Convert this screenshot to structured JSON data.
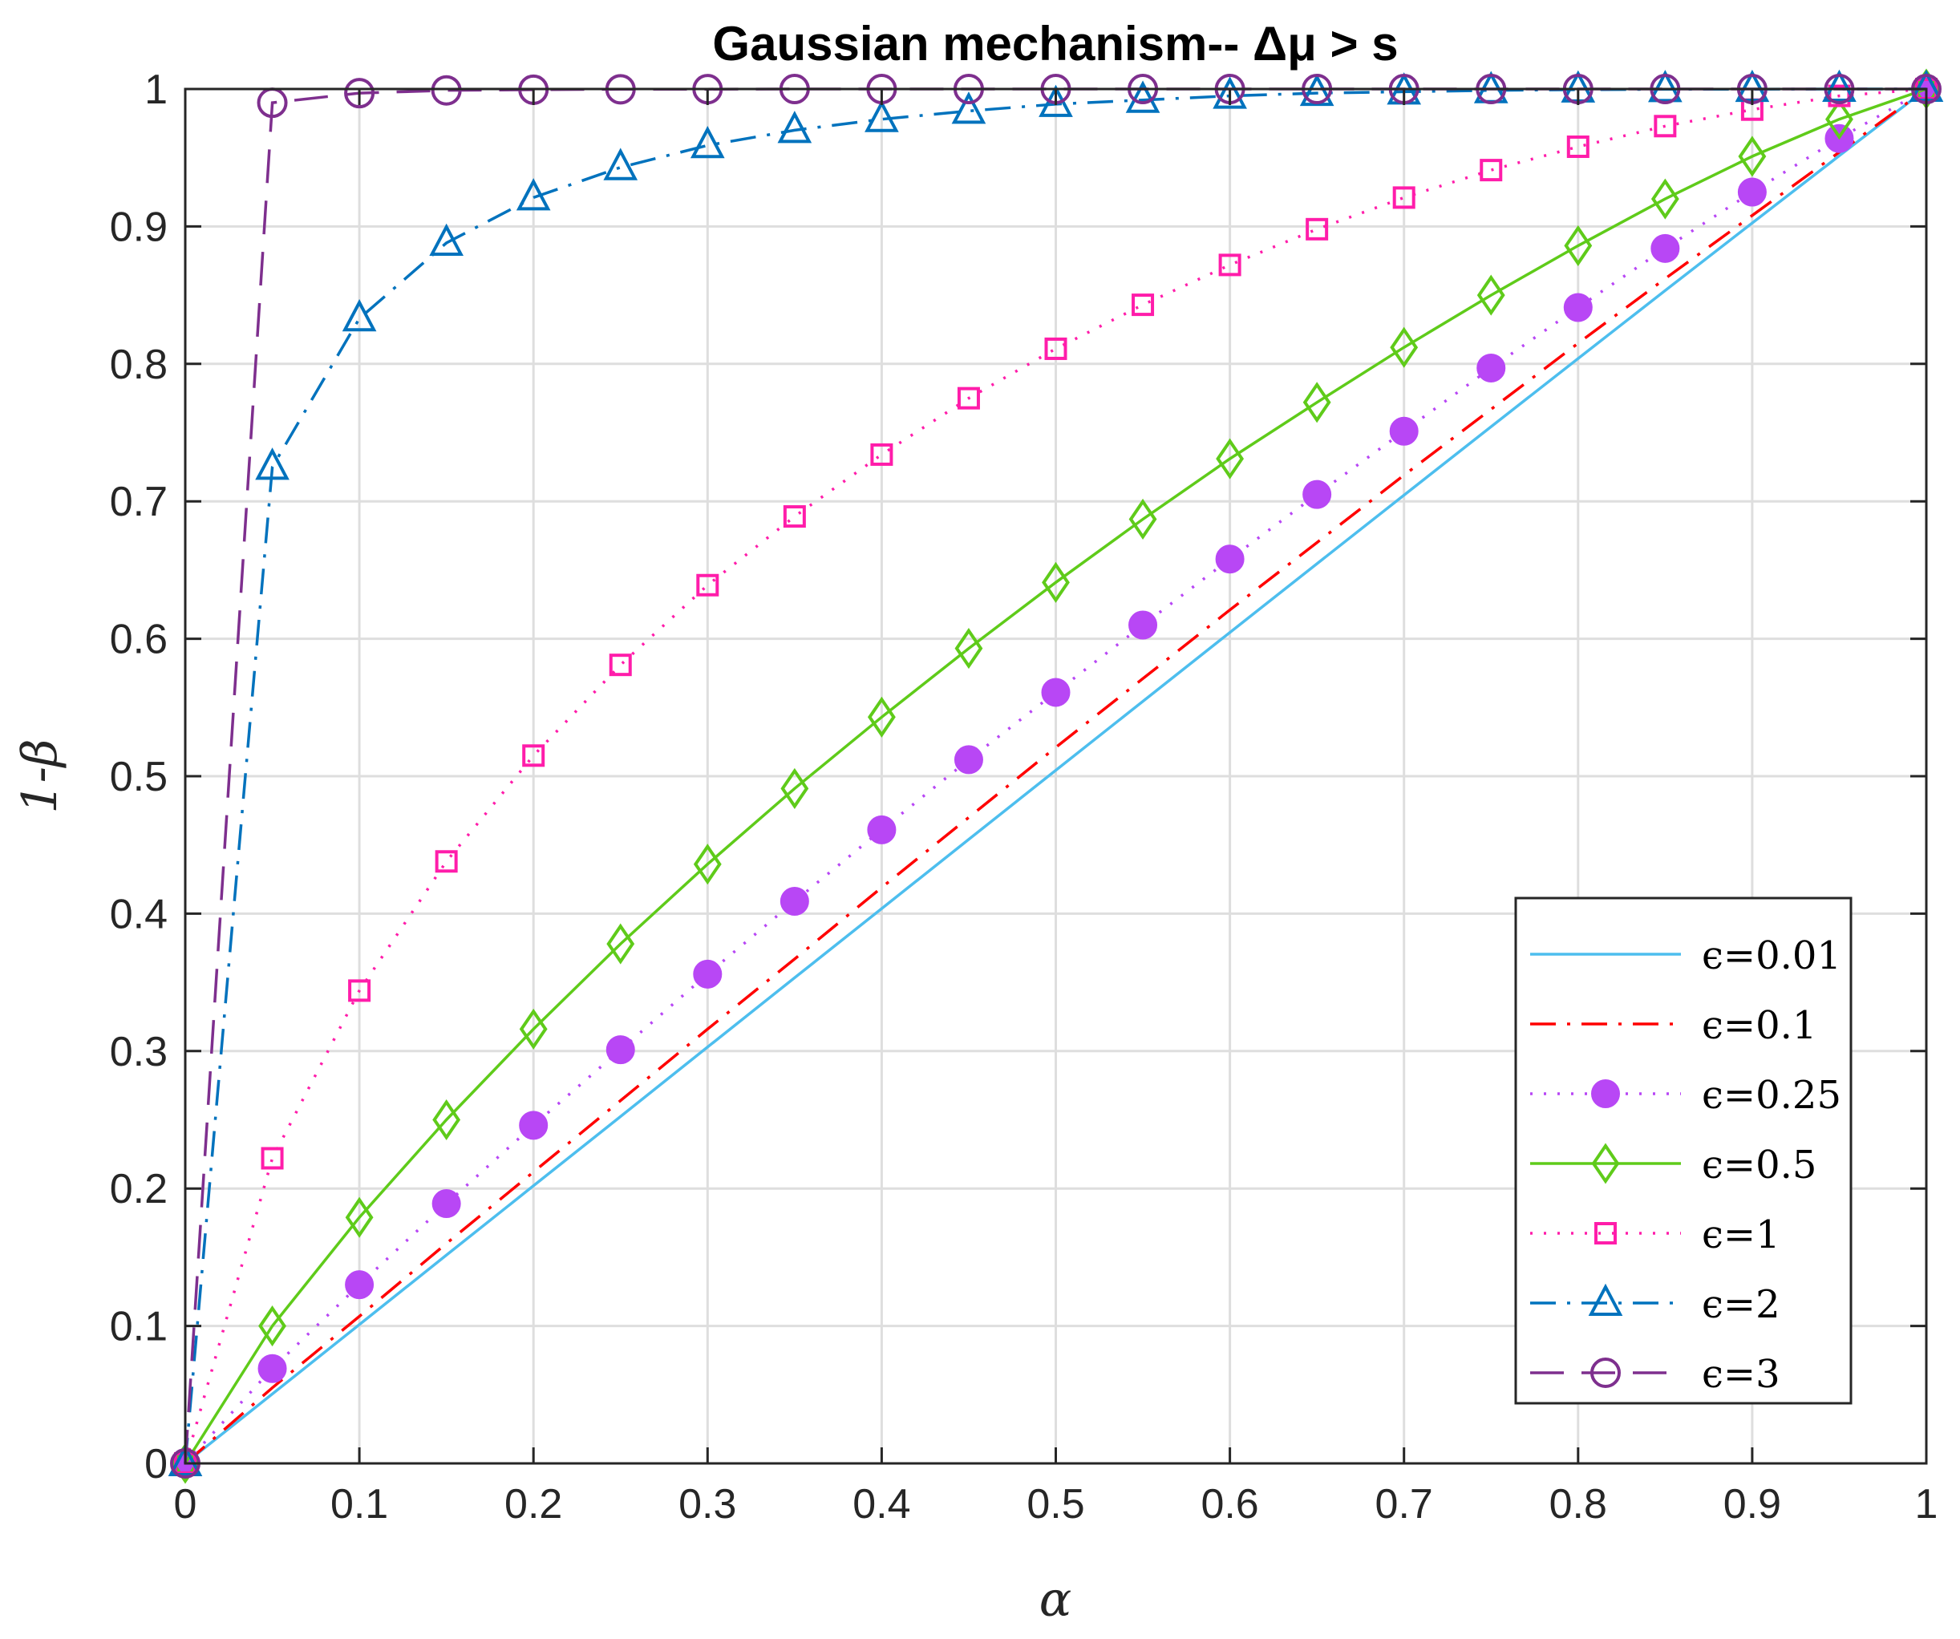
{
  "chart_data": {
    "type": "line",
    "title": "Gaussian mechanism-- Δμ > s",
    "xlabel": "α",
    "ylabel": "1-β",
    "xlim": [
      0,
      1
    ],
    "ylim": [
      0,
      1
    ],
    "grid": true,
    "legend_position": "bottom-right",
    "x_ticks": [
      "0",
      "0.1",
      "0.2",
      "0.3",
      "0.4",
      "0.5",
      "0.6",
      "0.7",
      "0.8",
      "0.9",
      "1"
    ],
    "y_ticks": [
      "0",
      "0.1",
      "0.2",
      "0.3",
      "0.4",
      "0.5",
      "0.6",
      "0.7",
      "0.8",
      "0.9",
      "1"
    ],
    "x": [
      0,
      0.05,
      0.1,
      0.15,
      0.2,
      0.25,
      0.3,
      0.35,
      0.4,
      0.45,
      0.5,
      0.55,
      0.6,
      0.65,
      0.7,
      0.75,
      0.8,
      0.85,
      0.9,
      0.95,
      1
    ],
    "series": [
      {
        "name": "ϵ=0.01",
        "color": "#4DBEEE",
        "line": "solid",
        "marker": "none",
        "values": [
          0,
          0.0505,
          0.101,
          0.1515,
          0.202,
          0.2524,
          0.3029,
          0.3533,
          0.4037,
          0.454,
          0.5043,
          0.5545,
          0.6046,
          0.6546,
          0.7045,
          0.7543,
          0.8039,
          0.8533,
          0.9025,
          0.9514,
          1
        ]
      },
      {
        "name": "ϵ=0.1",
        "color": "#FF0000",
        "line": "dashdot",
        "marker": "none",
        "values": [
          0,
          0.055,
          0.107,
          0.16,
          0.212,
          0.264,
          0.316,
          0.367,
          0.419,
          0.47,
          0.521,
          0.571,
          0.621,
          0.67,
          0.719,
          0.767,
          0.815,
          0.862,
          0.908,
          0.954,
          1
        ]
      },
      {
        "name": "ϵ=0.25",
        "color": "#B847F5",
        "line": "dotted",
        "marker": "filled-circle",
        "values": [
          0,
          0.069,
          0.13,
          0.189,
          0.246,
          0.301,
          0.356,
          0.409,
          0.461,
          0.512,
          0.561,
          0.61,
          0.658,
          0.705,
          0.751,
          0.797,
          0.841,
          0.884,
          0.925,
          0.964,
          1
        ]
      },
      {
        "name": "ϵ=0.5",
        "color": "#5FCB1A",
        "line": "solid",
        "marker": "diamond",
        "values": [
          0,
          0.1,
          0.179,
          0.25,
          0.316,
          0.378,
          0.436,
          0.491,
          0.543,
          0.593,
          0.641,
          0.687,
          0.731,
          0.772,
          0.812,
          0.85,
          0.886,
          0.92,
          0.951,
          0.978,
          1
        ]
      },
      {
        "name": "ϵ=1",
        "color": "#FF1DAA",
        "line": "dotted",
        "marker": "square",
        "values": [
          0,
          0.222,
          0.344,
          0.438,
          0.515,
          0.581,
          0.639,
          0.689,
          0.734,
          0.775,
          0.811,
          0.843,
          0.872,
          0.898,
          0.921,
          0.941,
          0.958,
          0.973,
          0.985,
          0.995,
          1
        ]
      },
      {
        "name": "ϵ=2",
        "color": "#0072BD",
        "line": "dashdot",
        "marker": "triangle",
        "values": [
          0,
          0.725,
          0.833,
          0.888,
          0.921,
          0.943,
          0.959,
          0.97,
          0.978,
          0.984,
          0.989,
          0.992,
          0.995,
          0.997,
          0.998,
          0.999,
          0.9995,
          0.9998,
          0.9999,
          1,
          1
        ]
      },
      {
        "name": "ϵ=3",
        "color": "#7E2F8E",
        "line": "dashed",
        "marker": "open-circle",
        "values": [
          0,
          0.99,
          0.997,
          0.999,
          0.9995,
          0.9998,
          0.9999,
          1,
          1,
          1,
          1,
          1,
          1,
          1,
          1,
          1,
          1,
          1,
          1,
          1,
          1
        ]
      }
    ]
  }
}
